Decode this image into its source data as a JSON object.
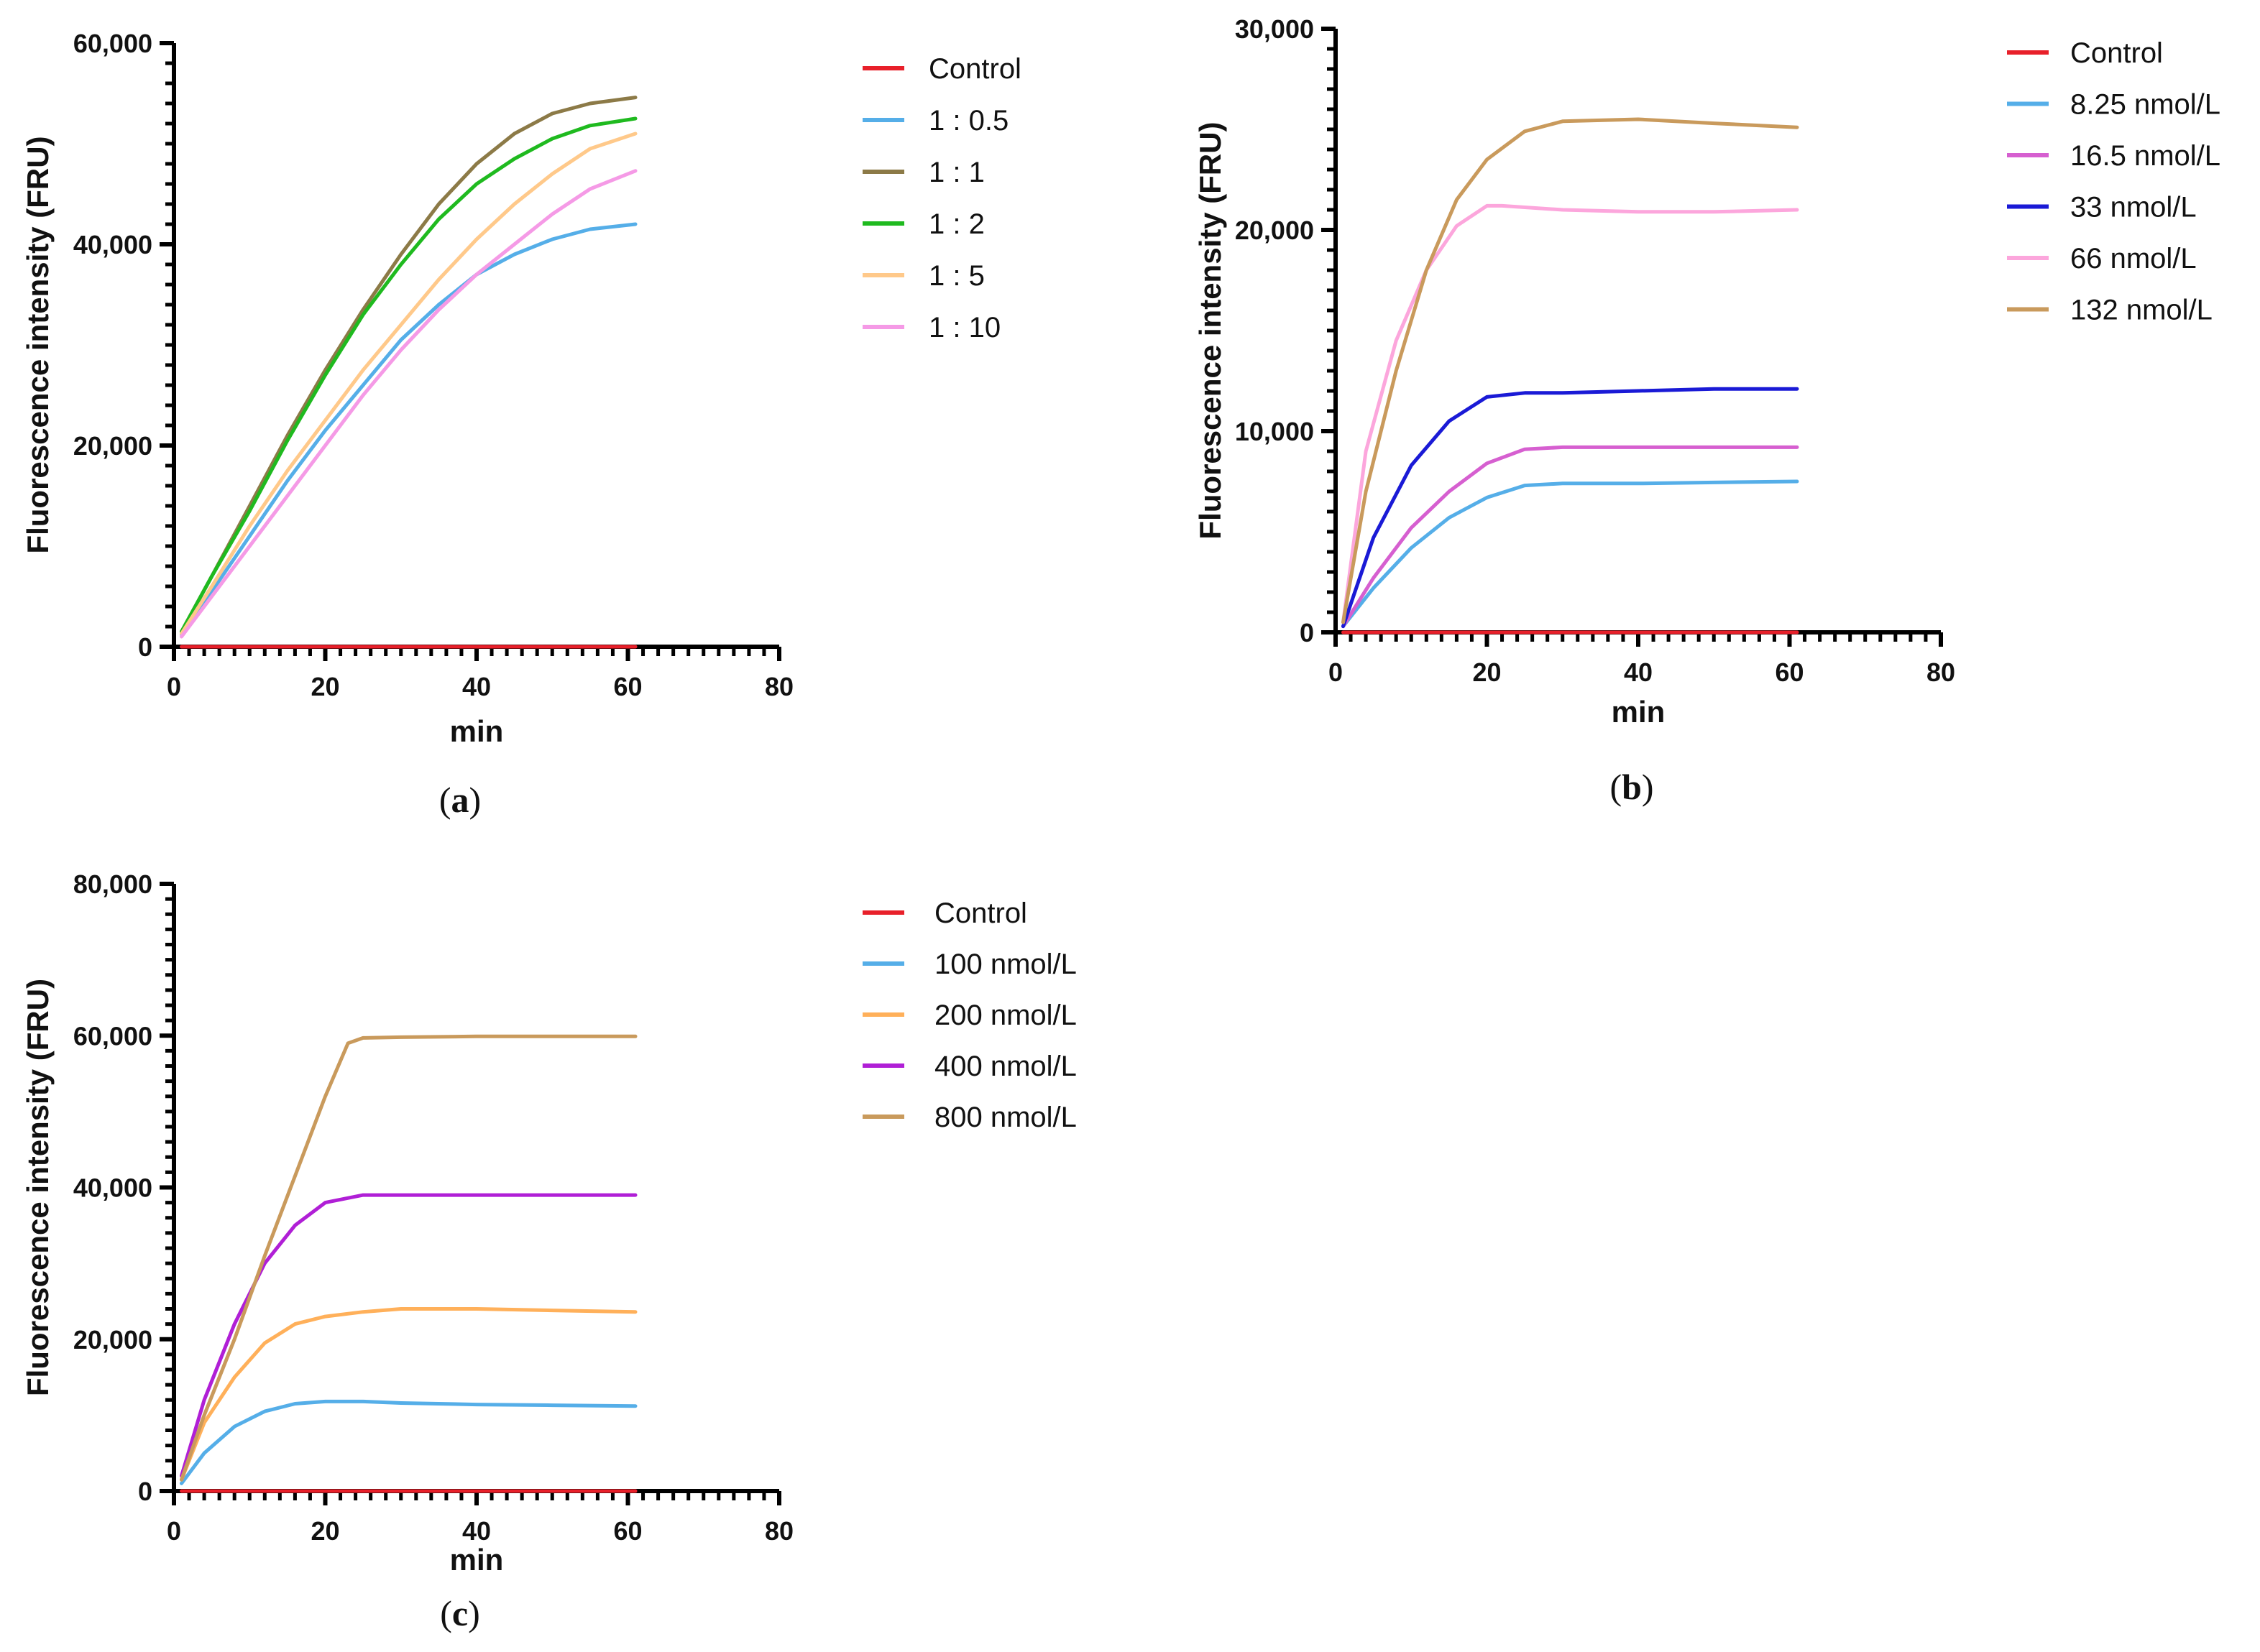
{
  "chart_data": [
    {
      "panel": "a",
      "type": "line",
      "xlabel": "min",
      "ylabel": "Fluorescence intensity (FRU)",
      "xlim": [
        0,
        80
      ],
      "ylim": [
        0,
        60000
      ],
      "xticks": [
        "0",
        "20",
        "40",
        "60",
        "80"
      ],
      "yticks": [
        "0",
        "20,000",
        "40,000",
        "60,000"
      ],
      "series": [
        {
          "name": "Control",
          "color": "#e8202a",
          "x": [
            1,
            61
          ],
          "y": [
            0,
            0
          ]
        },
        {
          "name": "1 : 0.5",
          "color": "#55aee8",
          "x": [
            1,
            5,
            10,
            15,
            20,
            25,
            30,
            35,
            40,
            45,
            50,
            55,
            61
          ],
          "y": [
            1200,
            5500,
            11000,
            16500,
            21500,
            26000,
            30500,
            34000,
            37000,
            39000,
            40500,
            41500,
            42000
          ]
        },
        {
          "name": "1 : 1",
          "color": "#8c7a47",
          "x": [
            1,
            5,
            10,
            15,
            20,
            25,
            30,
            35,
            40,
            45,
            50,
            55,
            61
          ],
          "y": [
            1500,
            7000,
            14000,
            21000,
            27500,
            33500,
            39000,
            44000,
            48000,
            51000,
            53000,
            54000,
            54600
          ]
        },
        {
          "name": "1 : 2",
          "color": "#1fba1f",
          "x": [
            1,
            5,
            10,
            15,
            20,
            25,
            30,
            35,
            40,
            45,
            50,
            55,
            61
          ],
          "y": [
            1500,
            7000,
            13500,
            20500,
            27000,
            33000,
            38000,
            42500,
            46000,
            48500,
            50500,
            51800,
            52500
          ]
        },
        {
          "name": "1 : 5",
          "color": "#ffc98a",
          "x": [
            1,
            5,
            10,
            15,
            20,
            25,
            30,
            35,
            40,
            45,
            50,
            55,
            61
          ],
          "y": [
            1300,
            6000,
            12000,
            17500,
            22500,
            27500,
            32000,
            36500,
            40500,
            44000,
            47000,
            49500,
            51000
          ]
        },
        {
          "name": "1 : 10",
          "color": "#f59ae6",
          "x": [
            1,
            5,
            10,
            15,
            20,
            25,
            30,
            35,
            40,
            45,
            50,
            55,
            61
          ],
          "y": [
            1000,
            5000,
            10000,
            15000,
            20000,
            25000,
            29500,
            33500,
            37000,
            40000,
            43000,
            45500,
            47300
          ]
        }
      ],
      "legend": "right"
    },
    {
      "panel": "b",
      "type": "line",
      "xlabel": "min",
      "ylabel": "Fluorescence intensity (FRU)",
      "xlim": [
        0,
        80
      ],
      "ylim": [
        0,
        30000
      ],
      "xticks": [
        "0",
        "20",
        "40",
        "60",
        "80"
      ],
      "yticks": [
        "0",
        "10,000",
        "20,000",
        "30,000"
      ],
      "series": [
        {
          "name": "Control",
          "color": "#e8202a",
          "x": [
            1,
            61
          ],
          "y": [
            0,
            0
          ]
        },
        {
          "name": "8.25 nmol/L",
          "color": "#55aee8",
          "x": [
            1,
            5,
            10,
            15,
            20,
            25,
            30,
            40,
            50,
            61
          ],
          "y": [
            300,
            2200,
            4200,
            5700,
            6700,
            7300,
            7400,
            7400,
            7450,
            7500
          ]
        },
        {
          "name": "16.5 nmol/L",
          "color": "#d65fd0",
          "x": [
            1,
            5,
            10,
            15,
            20,
            25,
            30,
            40,
            50,
            61
          ],
          "y": [
            300,
            2700,
            5200,
            7000,
            8400,
            9100,
            9200,
            9200,
            9200,
            9200
          ]
        },
        {
          "name": "33 nmol/L",
          "color": "#1a1ad6",
          "x": [
            1,
            5,
            10,
            15,
            20,
            25,
            30,
            40,
            50,
            61
          ],
          "y": [
            300,
            4700,
            8300,
            10500,
            11700,
            11900,
            11900,
            12000,
            12100,
            12100
          ]
        },
        {
          "name": "66 nmol/L",
          "color": "#fca6dc",
          "x": [
            1,
            4,
            8,
            12,
            16,
            20,
            22,
            30,
            40,
            50,
            61
          ],
          "y": [
            500,
            9000,
            14500,
            18000,
            20200,
            21200,
            21200,
            21000,
            20900,
            20900,
            21000
          ]
        },
        {
          "name": "132 nmol/L",
          "color": "#c99a5c",
          "x": [
            1,
            4,
            8,
            12,
            16,
            20,
            25,
            30,
            40,
            50,
            61
          ],
          "y": [
            500,
            7000,
            13000,
            18000,
            21500,
            23500,
            24900,
            25400,
            25500,
            25300,
            25100
          ]
        }
      ],
      "legend": "right"
    },
    {
      "panel": "c",
      "type": "line",
      "xlabel": "min",
      "ylabel": "Fluorescence intensity (FRU)",
      "xlim": [
        0,
        80
      ],
      "ylim": [
        0,
        80000
      ],
      "xticks": [
        "0",
        "20",
        "40",
        "60",
        "80"
      ],
      "yticks": [
        "0",
        "20,000",
        "40,000",
        "60,000",
        "80,000"
      ],
      "series": [
        {
          "name": "Control",
          "color": "#e8202a",
          "x": [
            1,
            61
          ],
          "y": [
            0,
            0
          ]
        },
        {
          "name": "100 nmol/L",
          "color": "#55aee8",
          "x": [
            1,
            4,
            8,
            12,
            16,
            20,
            25,
            30,
            40,
            50,
            61
          ],
          "y": [
            1000,
            5000,
            8500,
            10500,
            11500,
            11800,
            11800,
            11600,
            11400,
            11300,
            11200
          ]
        },
        {
          "name": "200 nmol/L",
          "color": "#ffb05a",
          "x": [
            1,
            4,
            8,
            12,
            16,
            20,
            25,
            30,
            40,
            50,
            61
          ],
          "y": [
            1500,
            9000,
            15000,
            19500,
            22000,
            23000,
            23600,
            24000,
            24000,
            23800,
            23600
          ]
        },
        {
          "name": "400 nmol/L",
          "color": "#b01fd6",
          "x": [
            1,
            4,
            8,
            12,
            16,
            20,
            25,
            30,
            40,
            50,
            61
          ],
          "y": [
            2000,
            12000,
            22000,
            30000,
            35000,
            38000,
            39000,
            39000,
            39000,
            39000,
            39000
          ]
        },
        {
          "name": "800 nmol/L",
          "color": "#c99a5c",
          "x": [
            1,
            4,
            8,
            12,
            16,
            20,
            23,
            25,
            30,
            40,
            50,
            61
          ],
          "y": [
            1500,
            10000,
            20000,
            31000,
            41500,
            52000,
            59000,
            59700,
            59800,
            59900,
            59900,
            59900
          ]
        }
      ],
      "legend": "right"
    }
  ],
  "panel_labels": [
    {
      "open": "(",
      "letter": "a",
      "close": ")"
    },
    {
      "open": "(",
      "letter": "b",
      "close": ")"
    },
    {
      "open": "(",
      "letter": "c",
      "close": ")"
    }
  ]
}
